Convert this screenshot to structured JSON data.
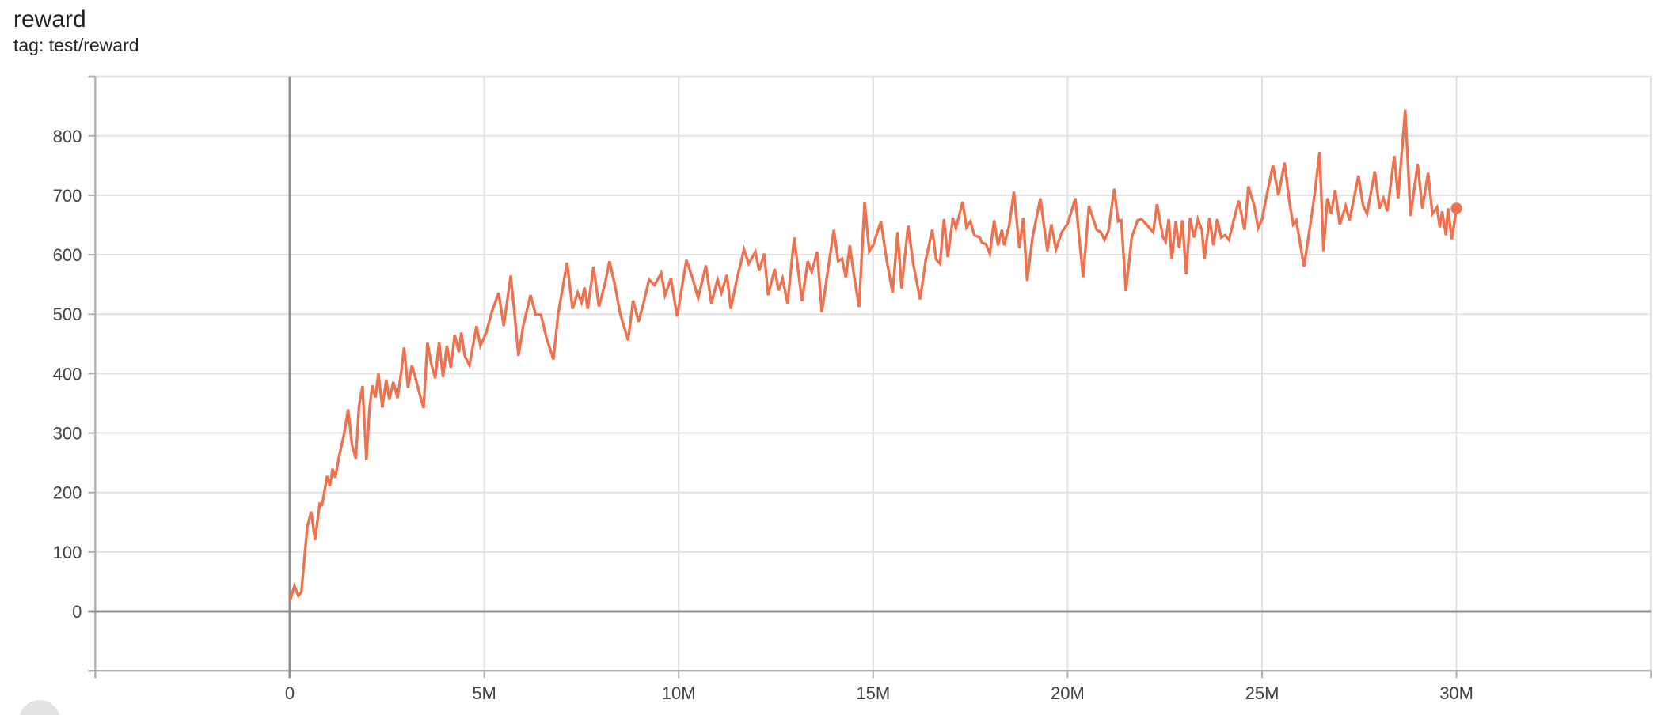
{
  "card": {
    "title": "reward",
    "tag": "tag: test/reward"
  },
  "colors": {
    "background": "#ffffff",
    "line": "#ed7350",
    "grid": "#e2e2e2",
    "zero_line": "#8f8f8f",
    "axis_line": "#b0b0b0",
    "tick_label": "#424242",
    "title_text": "#212121",
    "fab": "#e3e3e3"
  },
  "chart_data": {
    "type": "line",
    "title": "reward",
    "tag": "test/reward",
    "series": [
      {
        "name": "test/reward",
        "color": "#ed7350",
        "end_marker": true,
        "final_step_m": 30.0,
        "final_value": 678
      }
    ],
    "x_unit": "steps (millions)",
    "xlim": [
      -5,
      35
    ],
    "ylim": [
      -100,
      900
    ],
    "grid": true,
    "x_ticks": [
      {
        "v": 0,
        "label": "0"
      },
      {
        "v": 5,
        "label": "5M"
      },
      {
        "v": 10,
        "label": "10M"
      },
      {
        "v": 15,
        "label": "15M"
      },
      {
        "v": 20,
        "label": "20M"
      },
      {
        "v": 25,
        "label": "25M"
      },
      {
        "v": 30,
        "label": "30M"
      }
    ],
    "y_ticks": [
      {
        "v": 0,
        "label": "0"
      },
      {
        "v": 100,
        "label": "100"
      },
      {
        "v": 200,
        "label": "200"
      },
      {
        "v": 300,
        "label": "300"
      },
      {
        "v": 400,
        "label": "400"
      },
      {
        "v": 500,
        "label": "500"
      },
      {
        "v": 600,
        "label": "600"
      },
      {
        "v": 700,
        "label": "700"
      },
      {
        "v": 800,
        "label": "800"
      }
    ],
    "grid_step_x": 5,
    "grid_step_y": 100,
    "points": [
      [
        0,
        17
      ],
      [
        0.12,
        43
      ],
      [
        0.22,
        26
      ],
      [
        0.3,
        33
      ],
      [
        0.45,
        142
      ],
      [
        0.55,
        168
      ],
      [
        0.65,
        120
      ],
      [
        0.77,
        181
      ],
      [
        0.83,
        179
      ],
      [
        0.96,
        228
      ],
      [
        1.03,
        211
      ],
      [
        1.1,
        240
      ],
      [
        1.17,
        225
      ],
      [
        1.26,
        258
      ],
      [
        1.4,
        300
      ],
      [
        1.5,
        340
      ],
      [
        1.6,
        280
      ],
      [
        1.7,
        257
      ],
      [
        1.78,
        345
      ],
      [
        1.87,
        379
      ],
      [
        1.97,
        255
      ],
      [
        2.05,
        340
      ],
      [
        2.12,
        380
      ],
      [
        2.2,
        360
      ],
      [
        2.28,
        400
      ],
      [
        2.38,
        343
      ],
      [
        2.48,
        390
      ],
      [
        2.56,
        356
      ],
      [
        2.66,
        386
      ],
      [
        2.77,
        359
      ],
      [
        2.87,
        405
      ],
      [
        2.94,
        444
      ],
      [
        3.04,
        376
      ],
      [
        3.14,
        414
      ],
      [
        3.22,
        396
      ],
      [
        3.32,
        370
      ],
      [
        3.44,
        342
      ],
      [
        3.54,
        452
      ],
      [
        3.64,
        416
      ],
      [
        3.74,
        392
      ],
      [
        3.84,
        453
      ],
      [
        3.94,
        394
      ],
      [
        4.04,
        447
      ],
      [
        4.14,
        410
      ],
      [
        4.24,
        465
      ],
      [
        4.35,
        436
      ],
      [
        4.41,
        469
      ],
      [
        4.5,
        430
      ],
      [
        4.62,
        414
      ],
      [
        4.8,
        480
      ],
      [
        4.9,
        447
      ],
      [
        5.05,
        469
      ],
      [
        5.2,
        505
      ],
      [
        5.37,
        536
      ],
      [
        5.5,
        480
      ],
      [
        5.68,
        565
      ],
      [
        5.78,
        500
      ],
      [
        5.88,
        430
      ],
      [
        6.0,
        480
      ],
      [
        6.19,
        532
      ],
      [
        6.32,
        500
      ],
      [
        6.46,
        499
      ],
      [
        6.6,
        460
      ],
      [
        6.78,
        424
      ],
      [
        6.9,
        500
      ],
      [
        7.13,
        587
      ],
      [
        7.27,
        509
      ],
      [
        7.4,
        536
      ],
      [
        7.5,
        520
      ],
      [
        7.58,
        545
      ],
      [
        7.66,
        509
      ],
      [
        7.81,
        580
      ],
      [
        7.95,
        513
      ],
      [
        8.1,
        550
      ],
      [
        8.22,
        589
      ],
      [
        8.36,
        549
      ],
      [
        8.5,
        500
      ],
      [
        8.7,
        456
      ],
      [
        8.83,
        523
      ],
      [
        8.97,
        487
      ],
      [
        9.1,
        520
      ],
      [
        9.24,
        558
      ],
      [
        9.38,
        549
      ],
      [
        9.55,
        569
      ],
      [
        9.65,
        532
      ],
      [
        9.8,
        560
      ],
      [
        9.96,
        496
      ],
      [
        10.2,
        591
      ],
      [
        10.35,
        562
      ],
      [
        10.5,
        527
      ],
      [
        10.7,
        582
      ],
      [
        10.84,
        518
      ],
      [
        11.0,
        558
      ],
      [
        11.1,
        536
      ],
      [
        11.24,
        566
      ],
      [
        11.34,
        509
      ],
      [
        11.5,
        560
      ],
      [
        11.68,
        609
      ],
      [
        11.8,
        585
      ],
      [
        11.97,
        605
      ],
      [
        12.07,
        573
      ],
      [
        12.2,
        602
      ],
      [
        12.3,
        532
      ],
      [
        12.47,
        576
      ],
      [
        12.57,
        540
      ],
      [
        12.67,
        560
      ],
      [
        12.8,
        518
      ],
      [
        12.97,
        629
      ],
      [
        13.17,
        522
      ],
      [
        13.32,
        589
      ],
      [
        13.42,
        571
      ],
      [
        13.56,
        605
      ],
      [
        13.68,
        503
      ],
      [
        13.87,
        589
      ],
      [
        13.99,
        642
      ],
      [
        14.1,
        589
      ],
      [
        14.2,
        593
      ],
      [
        14.3,
        562
      ],
      [
        14.4,
        616
      ],
      [
        14.52,
        560
      ],
      [
        14.64,
        512
      ],
      [
        14.78,
        689
      ],
      [
        14.9,
        606
      ],
      [
        15.0,
        616
      ],
      [
        15.2,
        656
      ],
      [
        15.35,
        590
      ],
      [
        15.5,
        536
      ],
      [
        15.63,
        638
      ],
      [
        15.73,
        543
      ],
      [
        15.9,
        649
      ],
      [
        16.03,
        585
      ],
      [
        16.21,
        525
      ],
      [
        16.35,
        590
      ],
      [
        16.52,
        642
      ],
      [
        16.62,
        592
      ],
      [
        16.72,
        585
      ],
      [
        16.82,
        660
      ],
      [
        16.92,
        596
      ],
      [
        17.05,
        662
      ],
      [
        17.13,
        645
      ],
      [
        17.3,
        689
      ],
      [
        17.4,
        646
      ],
      [
        17.5,
        656
      ],
      [
        17.6,
        633
      ],
      [
        17.74,
        629
      ],
      [
        17.8,
        620
      ],
      [
        17.9,
        618
      ],
      [
        18.0,
        602
      ],
      [
        18.11,
        658
      ],
      [
        18.21,
        616
      ],
      [
        18.31,
        642
      ],
      [
        18.37,
        616
      ],
      [
        18.5,
        650
      ],
      [
        18.62,
        706
      ],
      [
        18.76,
        611
      ],
      [
        18.86,
        662
      ],
      [
        18.96,
        556
      ],
      [
        19.1,
        630
      ],
      [
        19.3,
        695
      ],
      [
        19.48,
        606
      ],
      [
        19.58,
        651
      ],
      [
        19.7,
        609
      ],
      [
        19.85,
        638
      ],
      [
        20.0,
        652
      ],
      [
        20.2,
        695
      ],
      [
        20.4,
        562
      ],
      [
        20.55,
        682
      ],
      [
        20.65,
        662
      ],
      [
        20.75,
        642
      ],
      [
        20.85,
        638
      ],
      [
        20.95,
        625
      ],
      [
        21.05,
        640
      ],
      [
        21.2,
        711
      ],
      [
        21.3,
        656
      ],
      [
        21.38,
        658
      ],
      [
        21.5,
        539
      ],
      [
        21.65,
        629
      ],
      [
        21.8,
        658
      ],
      [
        21.9,
        660
      ],
      [
        22.0,
        653
      ],
      [
        22.2,
        638
      ],
      [
        22.3,
        685
      ],
      [
        22.45,
        630
      ],
      [
        22.52,
        622
      ],
      [
        22.6,
        660
      ],
      [
        22.68,
        593
      ],
      [
        22.78,
        656
      ],
      [
        22.87,
        611
      ],
      [
        22.95,
        658
      ],
      [
        23.05,
        567
      ],
      [
        23.15,
        662
      ],
      [
        23.25,
        629
      ],
      [
        23.35,
        660
      ],
      [
        23.45,
        642
      ],
      [
        23.52,
        593
      ],
      [
        23.65,
        662
      ],
      [
        23.75,
        616
      ],
      [
        23.85,
        660
      ],
      [
        23.95,
        629
      ],
      [
        24.05,
        633
      ],
      [
        24.15,
        625
      ],
      [
        24.28,
        660
      ],
      [
        24.4,
        691
      ],
      [
        24.55,
        642
      ],
      [
        24.65,
        715
      ],
      [
        24.8,
        682
      ],
      [
        24.9,
        645
      ],
      [
        25.0,
        660
      ],
      [
        25.12,
        700
      ],
      [
        25.28,
        751
      ],
      [
        25.42,
        700
      ],
      [
        25.58,
        755
      ],
      [
        25.7,
        690
      ],
      [
        25.8,
        651
      ],
      [
        25.88,
        658
      ],
      [
        26.08,
        580
      ],
      [
        26.25,
        655
      ],
      [
        26.35,
        700
      ],
      [
        26.48,
        773
      ],
      [
        26.58,
        606
      ],
      [
        26.68,
        695
      ],
      [
        26.78,
        669
      ],
      [
        26.88,
        709
      ],
      [
        27.0,
        651
      ],
      [
        27.15,
        682
      ],
      [
        27.25,
        658
      ],
      [
        27.35,
        690
      ],
      [
        27.48,
        733
      ],
      [
        27.6,
        682
      ],
      [
        27.7,
        669
      ],
      [
        27.9,
        740
      ],
      [
        28.02,
        678
      ],
      [
        28.12,
        695
      ],
      [
        28.22,
        673
      ],
      [
        28.4,
        766
      ],
      [
        28.5,
        695
      ],
      [
        28.68,
        844
      ],
      [
        28.82,
        665
      ],
      [
        29.0,
        753
      ],
      [
        29.12,
        678
      ],
      [
        29.27,
        738
      ],
      [
        29.38,
        669
      ],
      [
        29.5,
        680
      ],
      [
        29.57,
        646
      ],
      [
        29.63,
        673
      ],
      [
        29.73,
        633
      ],
      [
        29.78,
        678
      ],
      [
        29.88,
        626
      ],
      [
        30.0,
        678
      ]
    ]
  }
}
